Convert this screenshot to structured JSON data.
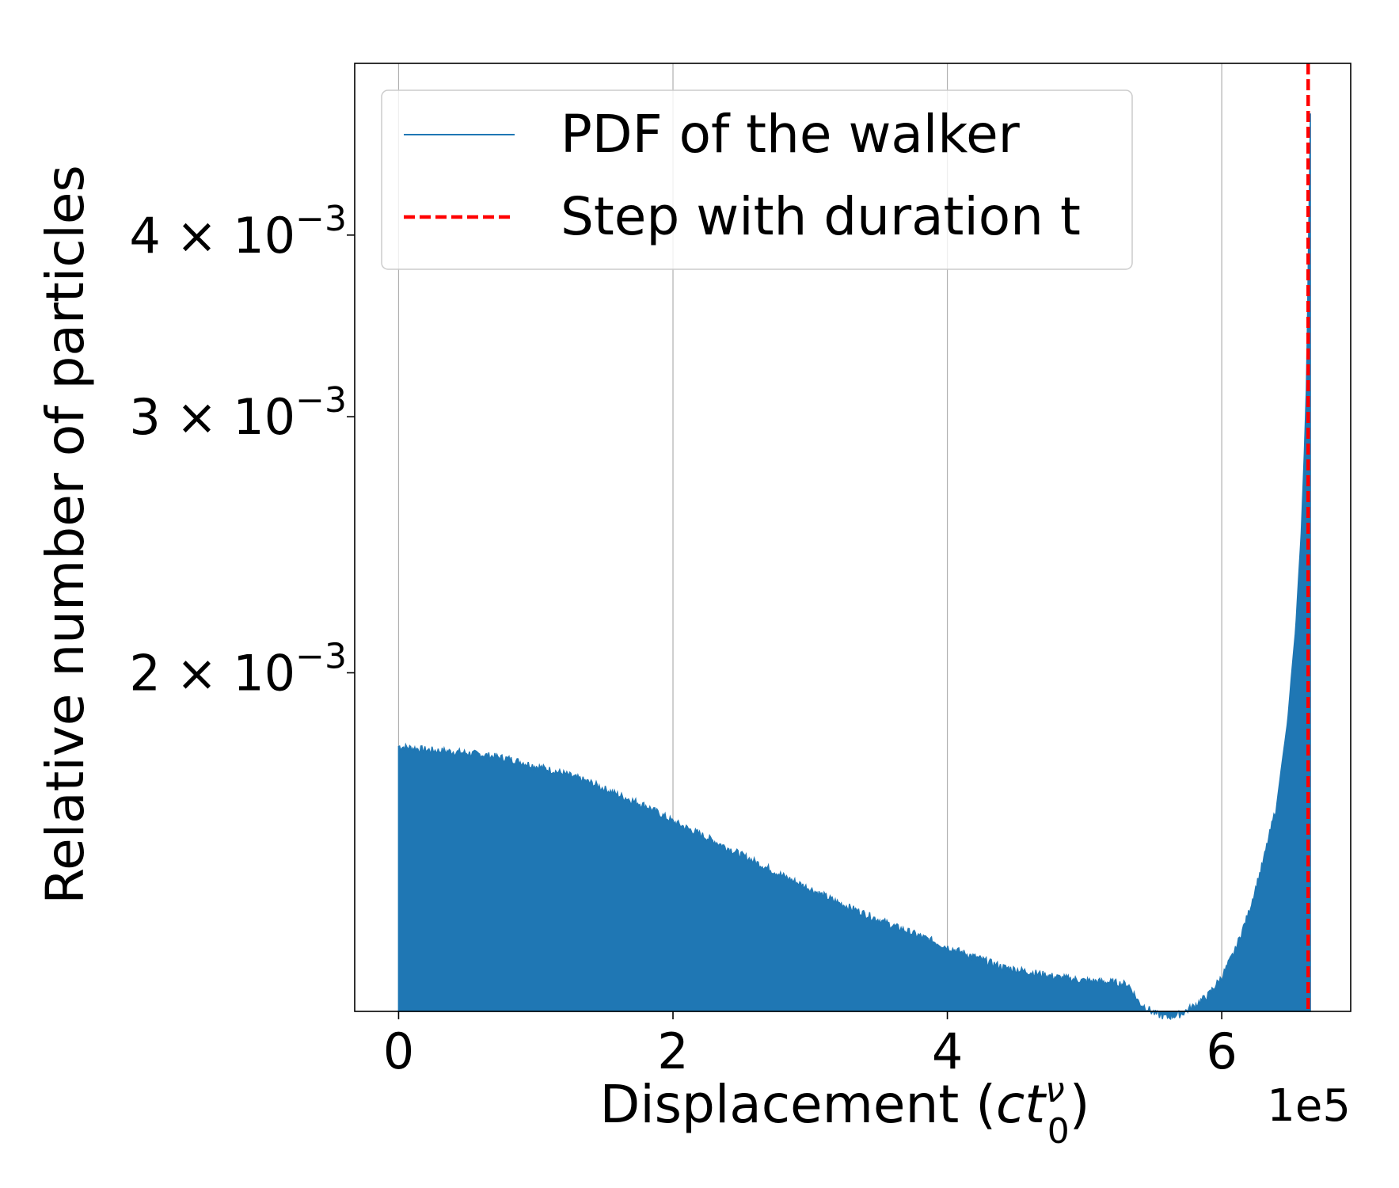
{
  "chart_data": {
    "type": "area",
    "title": "",
    "xlabel": {
      "text": "Displacement (",
      "var": "ct",
      "sub": "0",
      "sup": "ν",
      "close": ")"
    },
    "ylabel": "Relative number of particles",
    "x_multiplier": "1e5",
    "xlim": [
      -0.16,
      3.47
    ],
    "ylim": [
      0.00117,
      0.00525
    ],
    "yscale": "log",
    "grid": "x-only",
    "x_ticks": [
      {
        "value": 0,
        "label": "0"
      },
      {
        "value": 1,
        "label": "2"
      },
      {
        "value": 2,
        "label": "4"
      },
      {
        "value": 3,
        "label": "6"
      }
    ],
    "y_ticks": [
      {
        "value": 0.002,
        "mantissa": "2",
        "exponent": "−3"
      },
      {
        "value": 0.003,
        "mantissa": "3",
        "exponent": "−3"
      },
      {
        "value": 0.004,
        "mantissa": "4",
        "exponent": "−3"
      }
    ],
    "legend": {
      "position": "top-left",
      "entries": [
        {
          "label": "PDF of the walker",
          "color": "#1f77b4",
          "style": "solid"
        },
        {
          "label": "Step with duration t",
          "color": "#ff0000",
          "style": "dashed"
        }
      ]
    },
    "series": [
      {
        "name": "PDF of the walker",
        "color": "#1f77b4",
        "fill": true,
        "points": [
          [
            0.0,
            0.00178
          ],
          [
            0.1,
            0.00177
          ],
          [
            0.2,
            0.001765
          ],
          [
            0.3,
            0.001757
          ],
          [
            0.4,
            0.001745
          ],
          [
            0.5,
            0.001725
          ],
          [
            0.6,
            0.001705
          ],
          [
            0.7,
            0.00168
          ],
          [
            0.8,
            0.001648
          ],
          [
            0.9,
            0.00162
          ],
          [
            1.0,
            0.00158
          ],
          [
            1.1,
            0.001548
          ],
          [
            1.2,
            0.001515
          ],
          [
            1.3,
            0.001482
          ],
          [
            1.4,
            0.00145
          ],
          [
            1.5,
            0.00142
          ],
          [
            1.6,
            0.00139
          ],
          [
            1.7,
            0.001365
          ],
          [
            1.8,
            0.00134
          ],
          [
            1.9,
            0.001318
          ],
          [
            2.0,
            0.001295
          ],
          [
            2.1,
            0.001275
          ],
          [
            2.2,
            0.001255
          ],
          [
            2.3,
            0.001245
          ],
          [
            2.4,
            0.001235
          ],
          [
            2.5,
            0.001228
          ],
          [
            2.6,
            0.001225
          ],
          [
            2.66,
            0.00122
          ],
          [
            2.7,
            0.001185
          ],
          [
            2.76,
            0.001165
          ],
          [
            2.8,
            0.00116
          ],
          [
            2.85,
            0.001165
          ],
          [
            2.9,
            0.00118
          ],
          [
            2.95,
            0.0012
          ],
          [
            3.0,
            0.001235
          ],
          [
            3.05,
            0.00129
          ],
          [
            3.1,
            0.00137
          ],
          [
            3.15,
            0.00148
          ],
          [
            3.2,
            0.00162
          ],
          [
            3.24,
            0.00185
          ],
          [
            3.27,
            0.00215
          ],
          [
            3.29,
            0.0025
          ],
          [
            3.3,
            0.0028
          ],
          [
            3.31,
            0.0032
          ],
          [
            3.315,
            0.0038
          ],
          [
            3.32,
            0.0044
          ],
          [
            3.323,
            0.00485
          ]
        ]
      },
      {
        "name": "Step with duration t",
        "color": "#ff0000",
        "style": "dashed",
        "x": 3.315
      }
    ]
  }
}
